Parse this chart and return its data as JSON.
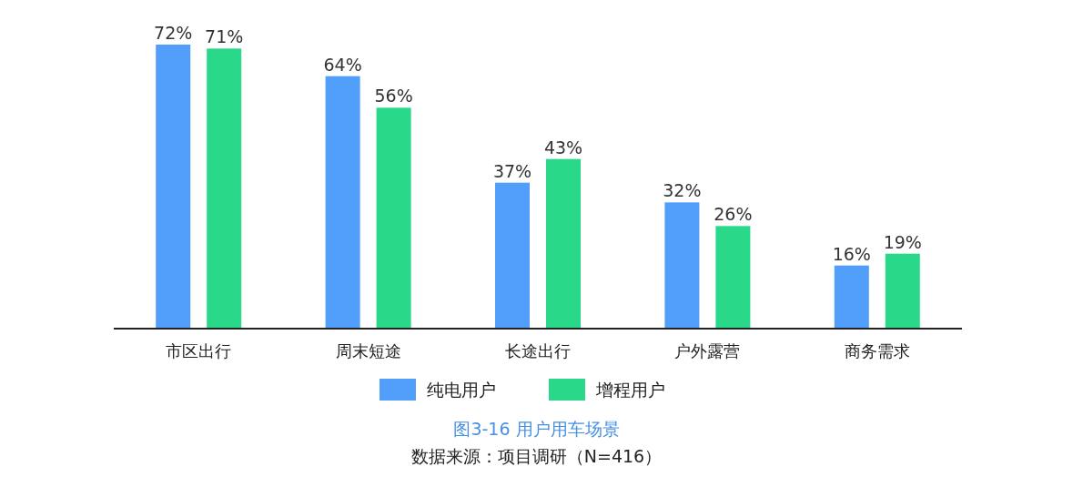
{
  "chart_data": {
    "type": "bar",
    "title": "图3-16 用户用车场景",
    "categories": [
      "市区出行",
      "周末短途",
      "长途出行",
      "户外露营",
      "商务需求"
    ],
    "series": [
      {
        "name": "纯电用户",
        "color": "#519ffb",
        "values": [
          72,
          64,
          37,
          32,
          16
        ],
        "value_labels": [
          "72%",
          "64%",
          "37%",
          "32%",
          "16%"
        ]
      },
      {
        "name": "增程用户",
        "color": "#2ad88a",
        "values": [
          71,
          56,
          43,
          26,
          19
        ],
        "value_labels": [
          "71%",
          "56%",
          "43%",
          "26%",
          "19%"
        ]
      }
    ],
    "legend": "bottom",
    "grid": false,
    "annotations": [
      "数据来源：项目调研（N=416）"
    ]
  }
}
